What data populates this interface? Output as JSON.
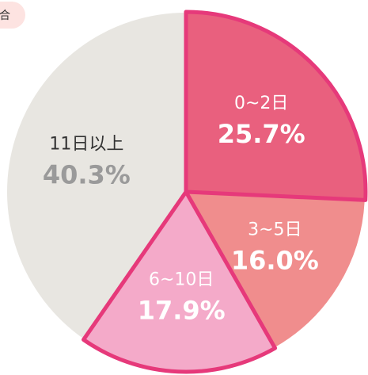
{
  "badge": "合",
  "chart_data": {
    "type": "pie",
    "categories": [
      "0~2日",
      "3~5日",
      "6~10日",
      "11日以上"
    ],
    "values": [
      25.7,
      16.0,
      17.9,
      40.3
    ],
    "value_labels": [
      "25.7%",
      "16.0%",
      "17.9%",
      "40.3%"
    ],
    "colors": [
      "#e9607e",
      "#f08d8d",
      "#f4aac9",
      "#e8e6e1"
    ],
    "label_colors": [
      "#ffffff",
      "#ffffff",
      "#ffffff",
      "#333333"
    ],
    "value_label_colors": [
      "#ffffff",
      "#ffffff",
      "#ffffff",
      "#9a9a9a"
    ],
    "highlight": [
      true,
      false,
      true,
      false
    ],
    "highlight_color": "#e6397a"
  }
}
